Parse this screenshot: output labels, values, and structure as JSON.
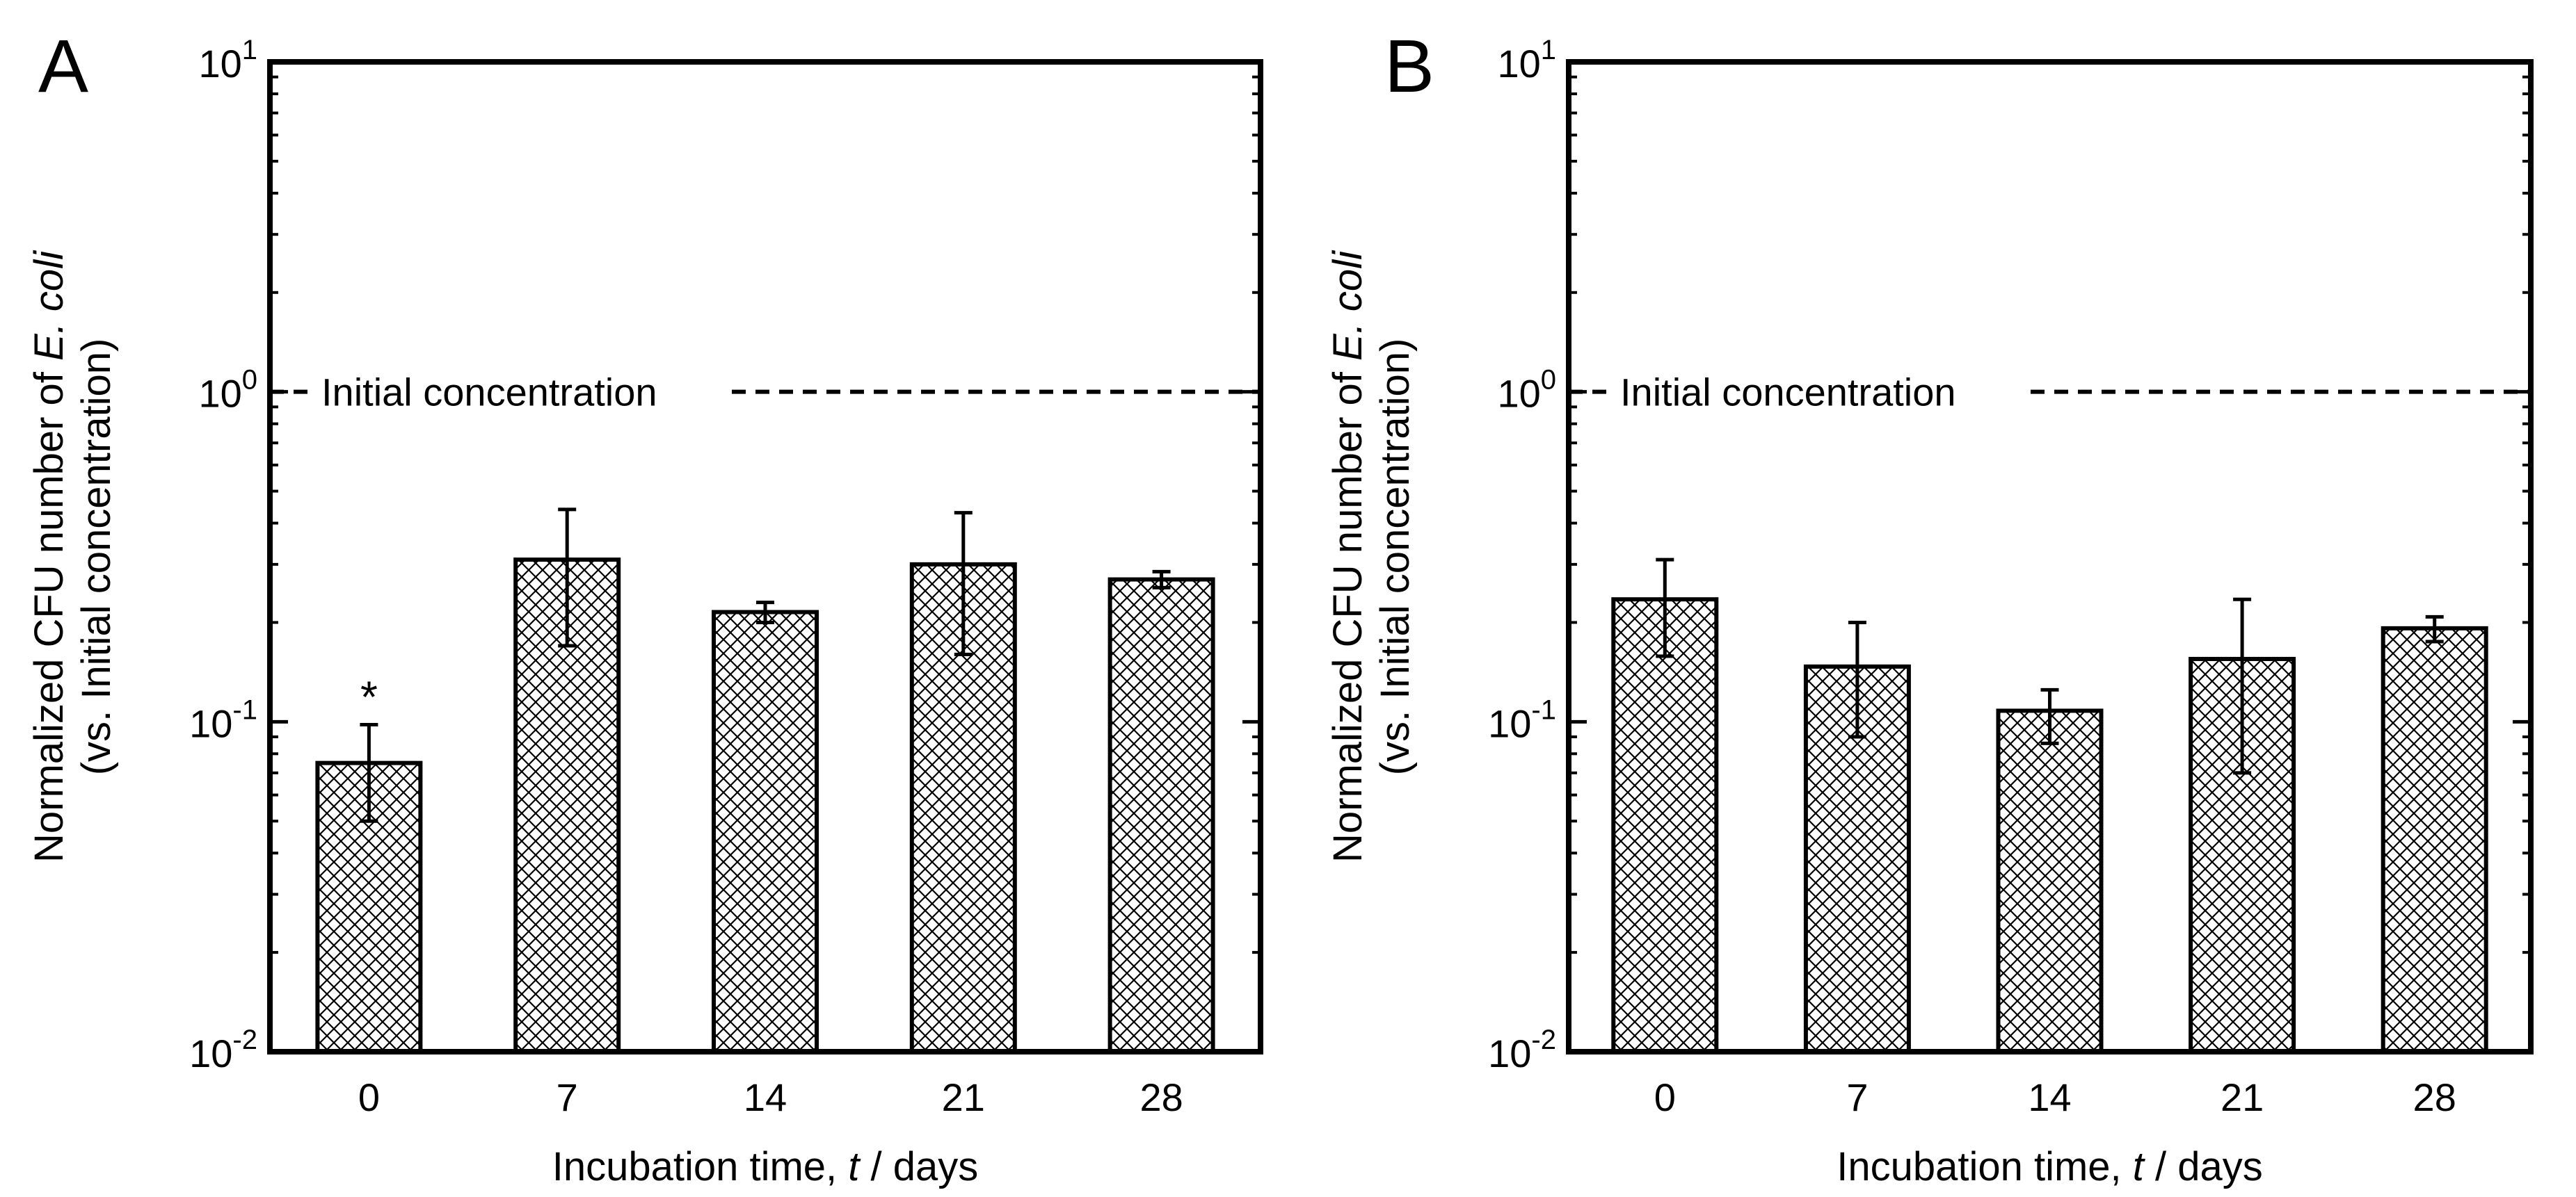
{
  "chart_data": [
    {
      "panel_label": "A",
      "type": "bar",
      "yscale": "log",
      "ylim": [
        0.01,
        10
      ],
      "yticks": [
        {
          "value": 0.01,
          "base": "10",
          "exp": "-2"
        },
        {
          "value": 0.1,
          "base": "10",
          "exp": "-1"
        },
        {
          "value": 1,
          "base": "10",
          "exp": "0"
        },
        {
          "value": 10,
          "base": "10",
          "exp": "1"
        }
      ],
      "categories": [
        "0",
        "7",
        "14",
        "21",
        "28"
      ],
      "values": [
        0.075,
        0.31,
        0.215,
        0.3,
        0.27
      ],
      "error_low": [
        0.05,
        0.17,
        0.2,
        0.16,
        0.255
      ],
      "error_high": [
        0.098,
        0.44,
        0.23,
        0.43,
        0.285
      ],
      "annotations": [
        {
          "category": "0",
          "text": "*"
        }
      ],
      "reference_line": {
        "value": 1,
        "label": "Initial concentration",
        "style": "dashed"
      },
      "ylabel_line1_prefix": "Normalized CFU number of ",
      "ylabel_line1_italic": "E. coli",
      "ylabel_line2": "(vs. Initial concentration)",
      "xlabel_prefix": "Incubation time, ",
      "xlabel_italic": "t",
      "xlabel_suffix": " / days"
    },
    {
      "panel_label": "B",
      "type": "bar",
      "yscale": "log",
      "ylim": [
        0.01,
        10
      ],
      "yticks": [
        {
          "value": 0.01,
          "base": "10",
          "exp": "-2"
        },
        {
          "value": 0.1,
          "base": "10",
          "exp": "-1"
        },
        {
          "value": 1,
          "base": "10",
          "exp": "0"
        },
        {
          "value": 10,
          "base": "10",
          "exp": "1"
        }
      ],
      "categories": [
        "0",
        "7",
        "14",
        "21",
        "28"
      ],
      "values": [
        0.235,
        0.147,
        0.108,
        0.155,
        0.192
      ],
      "error_low": [
        0.158,
        0.09,
        0.086,
        0.07,
        0.175
      ],
      "error_high": [
        0.31,
        0.2,
        0.125,
        0.235,
        0.208
      ],
      "annotations": [],
      "reference_line": {
        "value": 1,
        "label": "Initial concentration",
        "style": "dashed"
      },
      "ylabel_line1_prefix": "Normalized CFU number of ",
      "ylabel_line1_italic": "E. coli",
      "ylabel_line2": "(vs. Initial concentration)",
      "xlabel_prefix": "Incubation time, ",
      "xlabel_italic": "t",
      "xlabel_suffix": " / days"
    }
  ]
}
